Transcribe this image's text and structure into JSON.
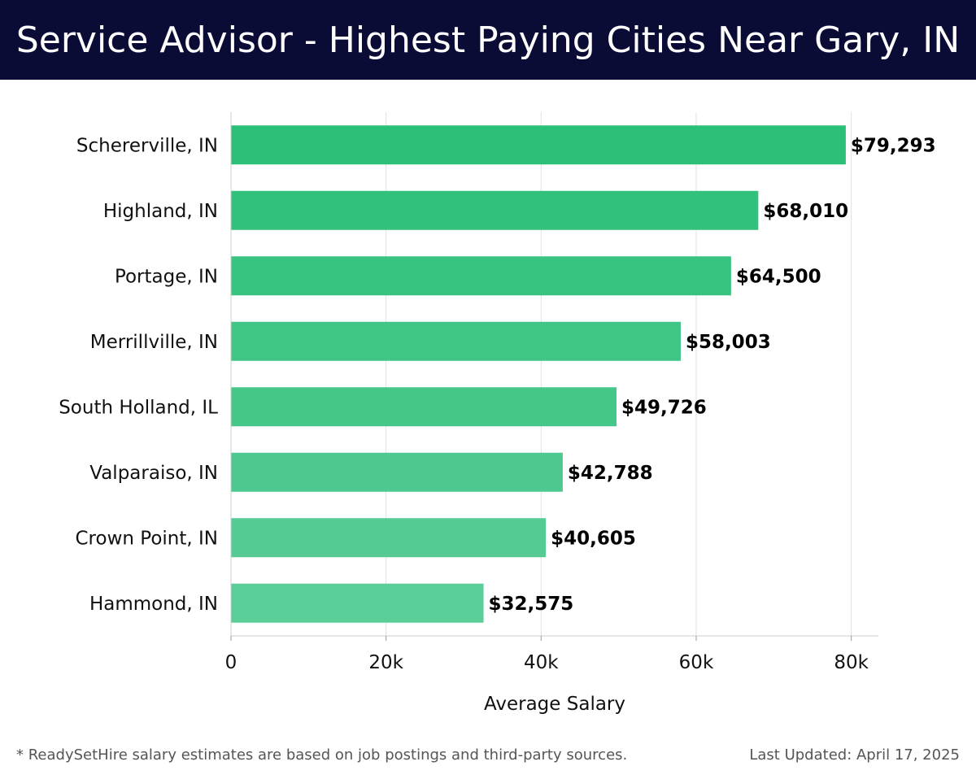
{
  "header": {
    "title": "Service Advisor - Highest Paying Cities Near Gary, IN"
  },
  "footer": {
    "note": "* ReadySetHire salary estimates are based on job postings and third-party sources.",
    "updated": "Last Updated: April 17, 2025"
  },
  "colors": {
    "header_bg": "#0b0c35",
    "bar_top": "#2bbf77",
    "bar_bottom": "#5acd98",
    "grid": "#e0e0e0"
  },
  "chart_data": {
    "type": "bar",
    "orientation": "horizontal",
    "categories": [
      "Schererville, IN",
      "Highland, IN",
      "Portage, IN",
      "Merrillville, IN",
      "South Holland, IL",
      "Valparaiso, IN",
      "Crown Point, IN",
      "Hammond, IN"
    ],
    "values": [
      79293,
      68010,
      64500,
      58003,
      49726,
      42788,
      40605,
      32575
    ],
    "value_labels": [
      "$79,293",
      "$68,010",
      "$64,500",
      "$58,003",
      "$49,726",
      "$42,788",
      "$40,605",
      "$32,575"
    ],
    "xlabel": "Average Salary",
    "ylabel": "",
    "xlim": [
      0,
      83500
    ],
    "xticks": [
      0,
      20000,
      40000,
      60000,
      80000
    ],
    "xtick_labels": [
      "0",
      "20k",
      "40k",
      "60k",
      "80k"
    ],
    "grid": true
  }
}
